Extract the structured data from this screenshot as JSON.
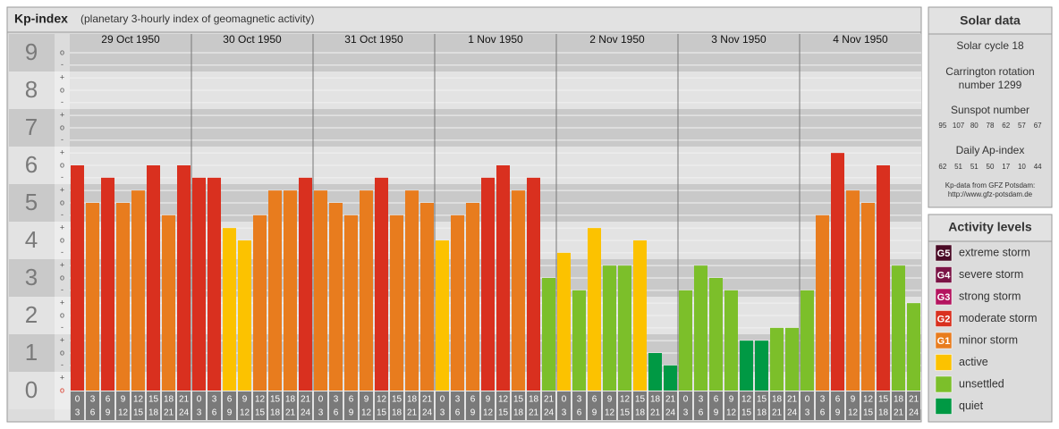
{
  "chart_data": {
    "type": "bar",
    "title": "Kp-index",
    "subtitle": "(planetary 3-hourly index of geomagnetic activity)",
    "categories": [
      [
        "0",
        "3"
      ],
      [
        "3",
        "6"
      ],
      [
        "6",
        "9"
      ],
      [
        "9",
        "12"
      ],
      [
        "12",
        "15"
      ],
      [
        "15",
        "18"
      ],
      [
        "18",
        "21"
      ],
      [
        "21",
        "24"
      ]
    ],
    "series": [
      {
        "name": "29 Oct 1950",
        "values": [
          6,
          5,
          5.67,
          5,
          5.33,
          6,
          4.67,
          6
        ],
        "colors": [
          "#d9301f",
          "#e87c1e",
          "#d9301f",
          "#e87c1e",
          "#e87c1e",
          "#d9301f",
          "#e87c1e",
          "#d9301f"
        ]
      },
      {
        "name": "30 Oct 1950",
        "values": [
          5.67,
          5.67,
          4.33,
          4,
          4.67,
          5.33,
          5.33,
          5.67
        ],
        "colors": [
          "#d9301f",
          "#d9301f",
          "#fcc200",
          "#fcc200",
          "#e87c1e",
          "#e87c1e",
          "#e87c1e",
          "#d9301f"
        ]
      },
      {
        "name": "31 Oct 1950",
        "values": [
          5.33,
          5,
          4.67,
          5.33,
          5.67,
          4.67,
          5.33,
          5
        ],
        "colors": [
          "#e87c1e",
          "#e87c1e",
          "#e87c1e",
          "#e87c1e",
          "#d9301f",
          "#e87c1e",
          "#e87c1e",
          "#e87c1e"
        ]
      },
      {
        "name": "1 Nov 1950",
        "values": [
          4,
          4.67,
          5,
          5.67,
          6,
          5.33,
          5.67,
          3
        ],
        "colors": [
          "#fcc200",
          "#e87c1e",
          "#e87c1e",
          "#d9301f",
          "#d9301f",
          "#e87c1e",
          "#d9301f",
          "#7cbf2a"
        ]
      },
      {
        "name": "2 Nov 1950",
        "values": [
          3.67,
          2.67,
          4.33,
          3.33,
          3.33,
          4,
          1,
          0.67
        ],
        "colors": [
          "#fcc200",
          "#7cbf2a",
          "#fcc200",
          "#7cbf2a",
          "#7cbf2a",
          "#fcc200",
          "#009944",
          "#009944"
        ]
      },
      {
        "name": "3 Nov 1950",
        "values": [
          2.67,
          3.33,
          3,
          2.67,
          1.33,
          1.33,
          1.67,
          1.67
        ],
        "colors": [
          "#7cbf2a",
          "#7cbf2a",
          "#7cbf2a",
          "#7cbf2a",
          "#009944",
          "#009944",
          "#7cbf2a",
          "#7cbf2a"
        ]
      },
      {
        "name": "4 Nov 1950",
        "values": [
          2.67,
          4.67,
          6.33,
          5.33,
          5,
          6,
          3.33,
          2.33
        ],
        "colors": [
          "#7cbf2a",
          "#e87c1e",
          "#d9301f",
          "#e87c1e",
          "#e87c1e",
          "#d9301f",
          "#7cbf2a",
          "#7cbf2a"
        ]
      }
    ],
    "ylim": [
      0,
      9.5
    ],
    "yticks": [
      0,
      1,
      2,
      3,
      4,
      5,
      6,
      7,
      8,
      9
    ],
    "yminor_ticks": [
      {
        "value": 0,
        "label": "o"
      },
      {
        "value": 0.33,
        "label": "+"
      },
      {
        "value": 0.67,
        "label": "-"
      },
      {
        "value": 1,
        "label": "o"
      },
      {
        "value": 1.33,
        "label": "+"
      },
      {
        "value": 1.67,
        "label": "-"
      },
      {
        "value": 2,
        "label": "o"
      },
      {
        "value": 2.33,
        "label": "+"
      },
      {
        "value": 2.67,
        "label": "-"
      },
      {
        "value": 3,
        "label": "o"
      },
      {
        "value": 3.33,
        "label": "+"
      },
      {
        "value": 3.67,
        "label": "-"
      },
      {
        "value": 4,
        "label": "o"
      },
      {
        "value": 4.33,
        "label": "+"
      },
      {
        "value": 4.67,
        "label": "-"
      },
      {
        "value": 5,
        "label": "o"
      },
      {
        "value": 5.33,
        "label": "+"
      },
      {
        "value": 5.67,
        "label": "-"
      },
      {
        "value": 6,
        "label": "o"
      },
      {
        "value": 6.33,
        "label": "+"
      },
      {
        "value": 6.67,
        "label": "-"
      },
      {
        "value": 7,
        "label": "o"
      },
      {
        "value": 7.33,
        "label": "+"
      },
      {
        "value": 7.67,
        "label": "-"
      },
      {
        "value": 8,
        "label": "o"
      },
      {
        "value": 8.33,
        "label": "+"
      },
      {
        "value": 8.67,
        "label": "-"
      },
      {
        "value": 9,
        "label": "o"
      }
    ],
    "grid": true
  },
  "solar_data": {
    "title": "Solar data",
    "solar_cycle": "Solar cycle 18",
    "carrington": [
      "Carrington rotation",
      "number 1299"
    ],
    "sunspot_title": "Sunspot number",
    "sunspot_numbers": [
      95,
      107,
      80,
      78,
      62,
      57,
      67
    ],
    "ap_title": "Daily Ap-index",
    "ap_values": [
      62,
      51,
      51,
      50,
      17,
      10,
      44
    ],
    "source": [
      "Kp-data from GFZ Potsdam:",
      "http://www.gfz-potsdam.de"
    ]
  },
  "activity_levels": {
    "title": "Activity levels",
    "items": [
      {
        "badge": "G5",
        "label": "extreme storm",
        "color": "#4a0b26"
      },
      {
        "badge": "G4",
        "label": "severe storm",
        "color": "#7b1446"
      },
      {
        "badge": "G3",
        "label": "strong storm",
        "color": "#b4145f"
      },
      {
        "badge": "G2",
        "label": "moderate storm",
        "color": "#d9301f"
      },
      {
        "badge": "G1",
        "label": "minor storm",
        "color": "#e87c1e"
      },
      {
        "label": "active",
        "color": "#fcc200"
      },
      {
        "label": "unsettled",
        "color": "#7cbf2a"
      },
      {
        "label": "quiet",
        "color": "#009944"
      }
    ]
  }
}
